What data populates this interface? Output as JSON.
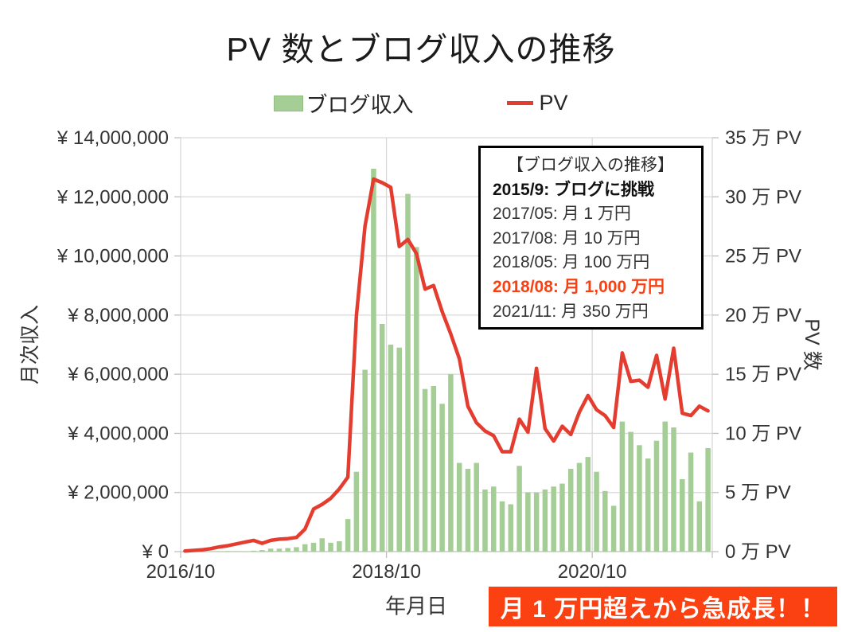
{
  "title": "PV 数とブログ収入の推移",
  "legend": {
    "income_label": "ブログ収入",
    "pv_label": "PV"
  },
  "axes": {
    "left_title": "月次収入",
    "right_title": "PV 数",
    "x_title": "年月日",
    "left_tick_labels": [
      "¥ 14,000,000",
      "¥ 12,000,000",
      "¥ 10,000,000",
      "¥ 8,000,000",
      "¥ 6,000,000",
      "¥ 4,000,000",
      "¥ 2,000,000",
      "¥ 0"
    ],
    "right_tick_labels": [
      "35 万 PV",
      "30 万 PV",
      "25 万 PV",
      "20 万 PV",
      "15 万 PV",
      "10 万 PV",
      "5 万 PV",
      "0 万 PV"
    ],
    "x_ticks": [
      {
        "index": 0,
        "label": "2016/10"
      },
      {
        "index": 24,
        "label": "2018/10"
      },
      {
        "index": 48,
        "label": "2020/10"
      }
    ]
  },
  "annotation": {
    "lines": [
      {
        "text": "【ブログ収入の推移】",
        "style": "header"
      },
      {
        "text": "2015/9: ブログに挑戦",
        "style": "bold"
      },
      {
        "text": "2017/05: 月 1 万円",
        "style": "normal"
      },
      {
        "text": "2017/08: 月 10 万円",
        "style": "normal"
      },
      {
        "text": "2018/05: 月 100 万円",
        "style": "normal"
      },
      {
        "text": "2018/08: 月 1,000 万円",
        "style": "highlight"
      },
      {
        "text": "2021/11: 月 350 万円",
        "style": "normal"
      }
    ]
  },
  "banner": {
    "text": "月 1 万円超えから急成長！！"
  },
  "colors": {
    "bar_fill": "#a4ce95",
    "line_red": "#e43d30",
    "grid": "#d9d9d9",
    "axis_line": "#bfbfbf",
    "tick_text": "#333333",
    "banner_bg": "#fb4112",
    "highlight_text": "#f94012"
  },
  "chart_data": {
    "type": "combo",
    "title": "PV 数とブログ収入の推移",
    "xlabel": "年月日",
    "legend_position": "top",
    "grid": true,
    "left_axis": {
      "label": "月次収入",
      "min": 0,
      "max": 14000000,
      "step": 2000000,
      "format": "¥"
    },
    "right_axis": {
      "label": "PV 数",
      "min": 0,
      "max": 35,
      "step": 5,
      "format": "万 PV"
    },
    "categories": [
      "2016/10",
      "2016/11",
      "2016/12",
      "2017/01",
      "2017/02",
      "2017/03",
      "2017/04",
      "2017/05",
      "2017/06",
      "2017/07",
      "2017/08",
      "2017/09",
      "2017/10",
      "2017/11",
      "2017/12",
      "2018/01",
      "2018/02",
      "2018/03",
      "2018/04",
      "2018/05",
      "2018/06",
      "2018/07",
      "2018/08",
      "2018/09",
      "2018/10",
      "2018/11",
      "2018/12",
      "2019/01",
      "2019/02",
      "2019/03",
      "2019/04",
      "2019/05",
      "2019/06",
      "2019/07",
      "2019/08",
      "2019/09",
      "2019/10",
      "2019/11",
      "2019/12",
      "2020/01",
      "2020/02",
      "2020/03",
      "2020/04",
      "2020/05",
      "2020/06",
      "2020/07",
      "2020/08",
      "2020/09",
      "2020/10",
      "2020/11",
      "2020/12",
      "2021/01",
      "2021/02",
      "2021/03",
      "2021/04",
      "2021/05",
      "2021/06",
      "2021/07",
      "2021/08",
      "2021/09",
      "2021/10",
      "2021/11"
    ],
    "series": [
      {
        "name": "ブログ収入",
        "type": "bar",
        "axis": "left",
        "unit": "JPY",
        "values": [
          0,
          5000,
          8000,
          10000,
          15000,
          20000,
          15000,
          10000,
          30000,
          50000,
          100000,
          100000,
          120000,
          150000,
          250000,
          300000,
          450000,
          300000,
          350000,
          1100000,
          2700000,
          6150000,
          12950000,
          7700000,
          7000000,
          6900000,
          12100000,
          10300000,
          5500000,
          5600000,
          5000000,
          6000000,
          3000000,
          2800000,
          3000000,
          2100000,
          2200000,
          1700000,
          1600000,
          2900000,
          2000000,
          2000000,
          2100000,
          2200000,
          2300000,
          2800000,
          3000000,
          3200000,
          2700000,
          2050000,
          1550000,
          4400000,
          4050000,
          3600000,
          3150000,
          3750000,
          4400000,
          4200000,
          2450000,
          3350000,
          1700000,
          3500000
        ]
      },
      {
        "name": "PV",
        "type": "line",
        "axis": "right",
        "unit": "万PV",
        "values": [
          0.05,
          0.1,
          0.15,
          0.25,
          0.4,
          0.5,
          0.65,
          0.8,
          0.95,
          0.7,
          0.95,
          1.05,
          1.1,
          1.2,
          1.9,
          3.6,
          4.0,
          4.5,
          5.3,
          6.3,
          20.0,
          27.5,
          31.5,
          31.2,
          30.8,
          25.8,
          26.4,
          25.2,
          22.2,
          22.5,
          20.3,
          18.4,
          16.3,
          12.3,
          10.9,
          10.2,
          9.8,
          8.45,
          8.45,
          11.2,
          10.1,
          15.5,
          10.4,
          9.35,
          10.6,
          9.9,
          11.8,
          13.2,
          12.0,
          11.5,
          10.5,
          16.8,
          14.4,
          14.5,
          13.9,
          16.6,
          12.9,
          17.2,
          11.7,
          11.5,
          12.3,
          11.9
        ]
      }
    ]
  }
}
